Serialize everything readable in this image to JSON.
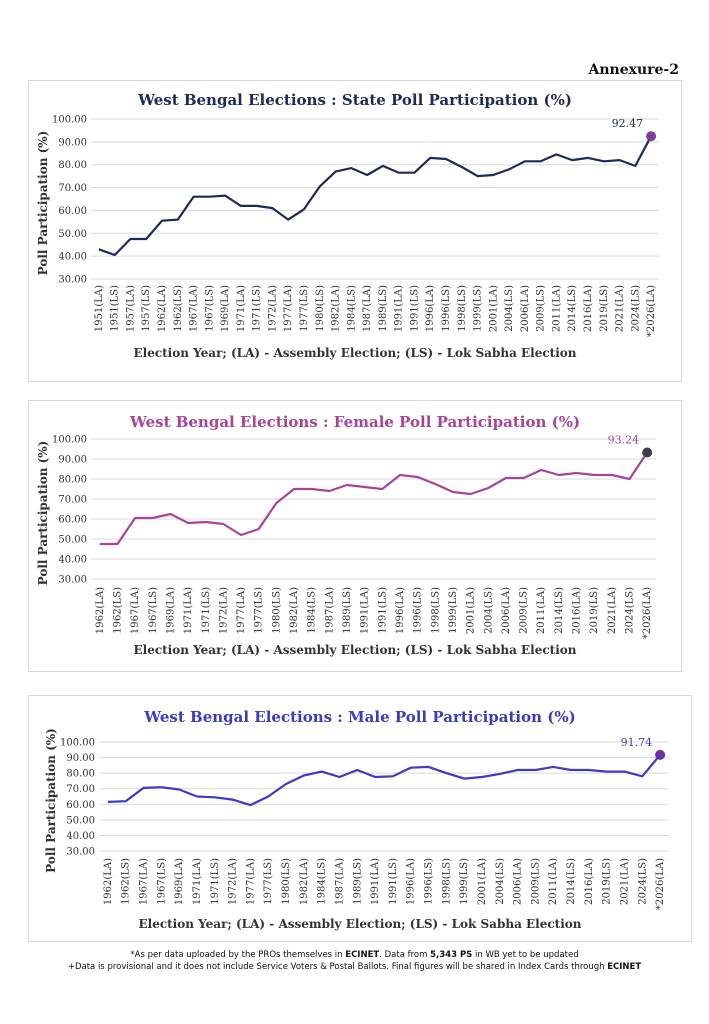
{
  "annexure": "Annexure-2",
  "footer": {
    "line1_pre": "*As per data uploaded by the PROs themselves in ",
    "line1_bold1": "ECINET",
    "line1_mid": ". Data from ",
    "line1_bold2": "5,343 PS",
    "line1_post": " in WB yet to be updated",
    "line2_pre": "+Data is provisional and it does not include Service Voters & Postal Ballots. Final figures will be shared in Index Cards through ",
    "line2_bold": "ECINET"
  },
  "chart_data": [
    {
      "type": "line",
      "title": "West Bengal Elections : State Poll Participation (%)",
      "ylabel": "Poll Participation (%)",
      "xlabel": "Election Year; (LA) - Assembly Election; (LS) - Lok Sabha Election",
      "ylim": [
        30,
        100
      ],
      "yticks": [
        "100.00",
        "90.00",
        "80.00",
        "70.00",
        "60.00",
        "50.00",
        "40.00",
        "30.00"
      ],
      "categories": [
        "1951(LA)",
        "1951(LS)",
        "1957(LA)",
        "1957(LS)",
        "1962(LA)",
        "1962(LS)",
        "1967(LA)",
        "1967(LS)",
        "1969(LA)",
        "1971(LA)",
        "1971(LS)",
        "1972(LA)",
        "1977(LA)",
        "1977(LS)",
        "1980(LS)",
        "1982(LA)",
        "1984(LS)",
        "1987(LA)",
        "1989(LS)",
        "1991(LA)",
        "1991(LS)",
        "1996(LA)",
        "1996(LS)",
        "1998(LS)",
        "1999(LS)",
        "2001(LA)",
        "2004(LS)",
        "2006(LA)",
        "2009(LS)",
        "2011(LA)",
        "2014(LS)",
        "2016(LA)",
        "2019(LS)",
        "2021(LA)",
        "2024(LS)",
        "*2026(LA)"
      ],
      "values": [
        43.0,
        40.5,
        47.5,
        47.5,
        55.5,
        56.0,
        66.0,
        66.0,
        66.5,
        62.0,
        62.0,
        61.0,
        56.0,
        60.5,
        70.5,
        77.0,
        78.5,
        75.5,
        79.5,
        76.5,
        76.5,
        83.0,
        82.5,
        79.0,
        75.0,
        75.5,
        78.0,
        81.5,
        81.5,
        84.5,
        82.0,
        83.0,
        81.5,
        82.0,
        79.5,
        92.47
      ],
      "last_label": "92.47",
      "line_color": "#1f2a5c",
      "marker_color": "#7b3f9e",
      "title_color": "#1f2a5c",
      "label_color": "#1f2a5c"
    },
    {
      "type": "line",
      "title": "West Bengal Elections : Female Poll Participation (%)",
      "ylabel": "Poll Participation (%)",
      "xlabel": "Election Year; (LA) - Assembly Election; (LS) - Lok Sabha Election",
      "ylim": [
        30,
        100
      ],
      "yticks": [
        "100.00",
        "90.00",
        "80.00",
        "70.00",
        "60.00",
        "50.00",
        "40.00",
        "30.00"
      ],
      "categories": [
        "1962(LA)",
        "1962(LS)",
        "1967(LA)",
        "1967(LS)",
        "1969(LA)",
        "1971(LA)",
        "1971(LS)",
        "1972(LA)",
        "1977(LA)",
        "1977(LS)",
        "1980(LS)",
        "1982(LA)",
        "1984(LS)",
        "1987(LA)",
        "1989(LS)",
        "1991(LA)",
        "1991(LS)",
        "1996(LA)",
        "1996(LS)",
        "1998(LS)",
        "1999(LS)",
        "2001(LA)",
        "2004(LS)",
        "2006(LA)",
        "2009(LS)",
        "2011(LA)",
        "2014(LS)",
        "2016(LA)",
        "2019(LS)",
        "2021(LA)",
        "2024(LS)",
        "*2026(LA)"
      ],
      "values": [
        47.5,
        47.5,
        60.5,
        60.5,
        62.5,
        58.0,
        58.5,
        57.5,
        52.0,
        55.0,
        68.0,
        75.0,
        75.0,
        74.0,
        77.0,
        76.0,
        75.0,
        82.0,
        81.0,
        77.5,
        73.5,
        72.5,
        75.5,
        80.5,
        80.5,
        84.5,
        82.0,
        83.0,
        82.0,
        82.0,
        80.0,
        93.24
      ],
      "last_label": "93.24",
      "line_color": "#a8439a",
      "marker_color": "#3d3d50",
      "title_color": "#a8439a",
      "label_color": "#a8439a"
    },
    {
      "type": "line",
      "title": "West Bengal Elections : Male Poll Participation (%)",
      "ylabel": "Poll Participation (%)",
      "xlabel": "Election Year; (LA) - Assembly Election; (LS) - Lok Sabha Election",
      "ylim": [
        30,
        100
      ],
      "yticks": [
        "100.00",
        "90.00",
        "80.00",
        "70.00",
        "60.00",
        "50.00",
        "40.00",
        "30.00"
      ],
      "categories": [
        "1962(LA)",
        "1962(LS)",
        "1967(LA)",
        "1967(LS)",
        "1969(LA)",
        "1971(LA)",
        "1971(LS)",
        "1972(LA)",
        "1977(LA)",
        "1977(LS)",
        "1980(LS)",
        "1982(LA)",
        "1984(LS)",
        "1987(LA)",
        "1989(LS)",
        "1991(LA)",
        "1991(LS)",
        "1996(LA)",
        "1996(LS)",
        "1998(LS)",
        "1999(LS)",
        "2001(LA)",
        "2004(LS)",
        "2006(LA)",
        "2009(LS)",
        "2011(LA)",
        "2014(LS)",
        "2016(LA)",
        "2019(LS)",
        "2021(LA)",
        "2024(LS)",
        "*2026(LA)"
      ],
      "values": [
        61.5,
        62.0,
        70.5,
        71.0,
        69.5,
        65.0,
        64.5,
        63.0,
        59.5,
        65.0,
        73.0,
        78.5,
        81.0,
        77.5,
        82.0,
        77.5,
        78.0,
        83.5,
        84.0,
        80.0,
        76.5,
        77.5,
        79.5,
        82.0,
        82.0,
        84.0,
        82.0,
        82.0,
        81.0,
        81.0,
        78.0,
        91.74
      ],
      "last_label": "91.74",
      "line_color": "#3b3bc4",
      "marker_color": "#6a2fa0",
      "title_color": "#3b3bc4",
      "label_color": "#3b3bc4"
    }
  ]
}
